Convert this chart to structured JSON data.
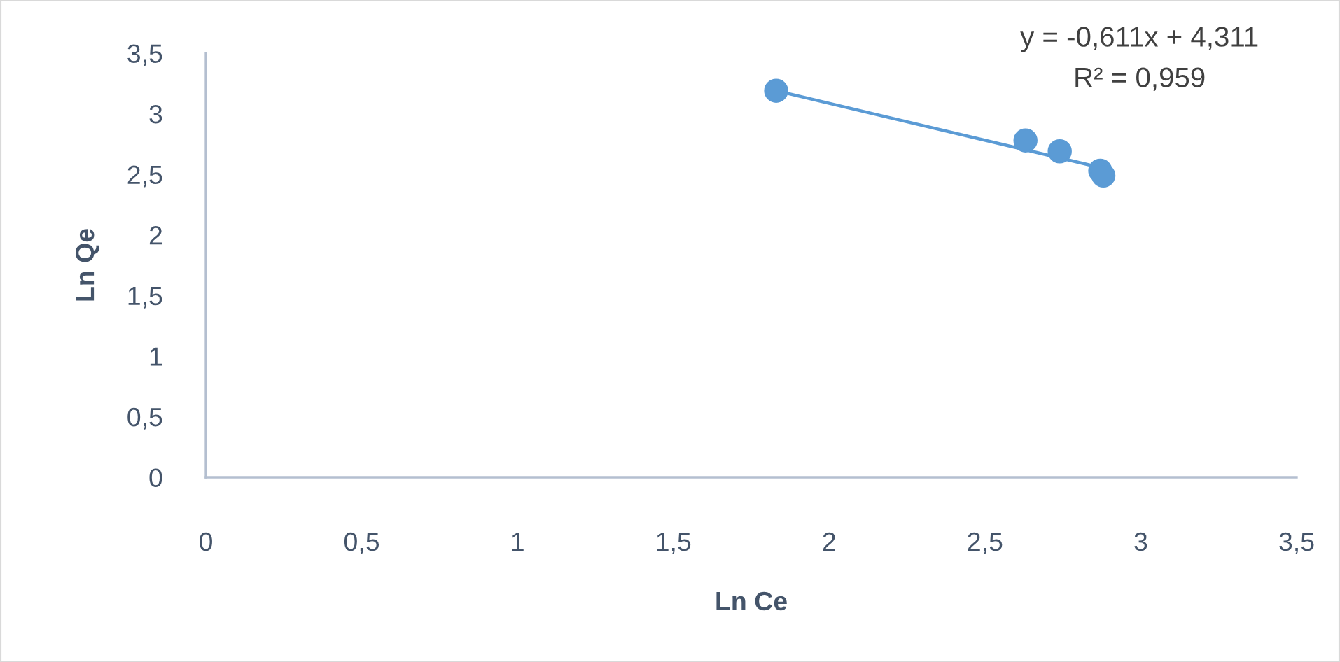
{
  "chart_data": {
    "type": "scatter",
    "xlabel": "Ln Ce",
    "ylabel": "Ln Qe",
    "annotations": [
      "y = -0,611x + 4,311",
      "R² = 0,959"
    ],
    "x": [
      1.83,
      2.63,
      2.74,
      2.87,
      2.88
    ],
    "series": [
      {
        "color": "#5b9bd5",
        "marker": "circle",
        "values": [
          3.19,
          2.78,
          2.69,
          2.53,
          2.49
        ]
      },
      {
        "type": "line",
        "x": [
          1.83,
          2.88
        ],
        "color": "#5b9bd5",
        "values": [
          3.19,
          2.55
        ]
      }
    ],
    "xlim": [
      0,
      3.5
    ],
    "ylim": [
      0,
      3.5
    ],
    "xticks": [
      0,
      {
        "value": 0.5,
        "label": "0,5"
      },
      1,
      {
        "value": 1.5,
        "label": "1,5"
      },
      2,
      {
        "value": 2.5,
        "label": "2,5"
      },
      3,
      {
        "value": 3.5,
        "label": "3,5"
      }
    ],
    "yticks": [
      0,
      {
        "value": 0.5,
        "label": "0,5"
      },
      1,
      {
        "value": 1.5,
        "label": "1,5"
      },
      2,
      {
        "value": 2.5,
        "label": "2,5"
      },
      3,
      {
        "value": 3.5,
        "label": "3,5"
      }
    ]
  }
}
